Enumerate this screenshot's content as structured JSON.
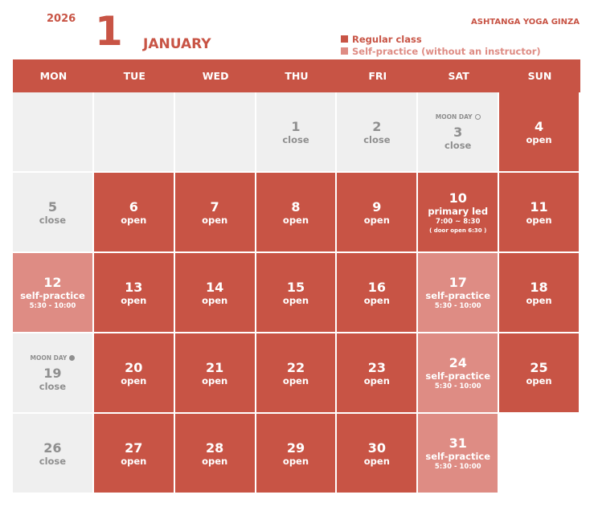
{
  "header": {
    "year": "2026",
    "month_number": "1",
    "month_name": "JANUARY",
    "studio_name": "ASHTANGA YOGA GINZA"
  },
  "legend": {
    "regular": "Regular class",
    "self_practice": "Self-practice (without an instructor)"
  },
  "weekdays": [
    "MON",
    "TUE",
    "WED",
    "THU",
    "FRI",
    "SAT",
    "SUN"
  ],
  "weeks": [
    [
      {
        "type": "empty"
      },
      {
        "type": "empty"
      },
      {
        "type": "empty"
      },
      {
        "type": "close",
        "day": "1",
        "status": "close"
      },
      {
        "type": "close",
        "day": "2",
        "status": "close"
      },
      {
        "type": "close",
        "day": "3",
        "status": "close",
        "moon": "MOON DAY",
        "moon_icon": "full-moon-icon"
      },
      {
        "type": "open",
        "day": "4",
        "status": "open"
      }
    ],
    [
      {
        "type": "close",
        "day": "5",
        "status": "close"
      },
      {
        "type": "open",
        "day": "6",
        "status": "open"
      },
      {
        "type": "open",
        "day": "7",
        "status": "open"
      },
      {
        "type": "open",
        "day": "8",
        "status": "open"
      },
      {
        "type": "open",
        "day": "9",
        "status": "open"
      },
      {
        "type": "open",
        "day": "10",
        "status": "primary led",
        "time": "7:00 ~ 8:30",
        "note": "( door open 6:30 )"
      },
      {
        "type": "open",
        "day": "11",
        "status": "open"
      }
    ],
    [
      {
        "type": "self",
        "day": "12",
        "status": "self-practice",
        "time": "5:30 - 10:00"
      },
      {
        "type": "open",
        "day": "13",
        "status": "open"
      },
      {
        "type": "open",
        "day": "14",
        "status": "open"
      },
      {
        "type": "open",
        "day": "15",
        "status": "open"
      },
      {
        "type": "open",
        "day": "16",
        "status": "open"
      },
      {
        "type": "self",
        "day": "17",
        "status": "self-practice",
        "time": "5:30 - 10:00"
      },
      {
        "type": "open",
        "day": "18",
        "status": "open"
      }
    ],
    [
      {
        "type": "close",
        "day": "19",
        "status": "close",
        "moon": "MOON DAY",
        "moon_icon": "new-moon-icon"
      },
      {
        "type": "open",
        "day": "20",
        "status": "open"
      },
      {
        "type": "open",
        "day": "21",
        "status": "open"
      },
      {
        "type": "open",
        "day": "22",
        "status": "open"
      },
      {
        "type": "open",
        "day": "23",
        "status": "open"
      },
      {
        "type": "self",
        "day": "24",
        "status": "self-practice",
        "time": "5:30 - 10:00"
      },
      {
        "type": "open",
        "day": "25",
        "status": "open"
      }
    ],
    [
      {
        "type": "close",
        "day": "26",
        "status": "close"
      },
      {
        "type": "open",
        "day": "27",
        "status": "open"
      },
      {
        "type": "open",
        "day": "28",
        "status": "open"
      },
      {
        "type": "open",
        "day": "29",
        "status": "open"
      },
      {
        "type": "open",
        "day": "30",
        "status": "open"
      },
      {
        "type": "self",
        "day": "31",
        "status": "self-practice",
        "time": "5:30 - 10:00"
      },
      {
        "type": "none"
      }
    ]
  ],
  "colors": {
    "regular": "#c85445",
    "self_practice": "#de8c84",
    "closed": "#efefef",
    "closed_text": "#8f8f8f"
  }
}
